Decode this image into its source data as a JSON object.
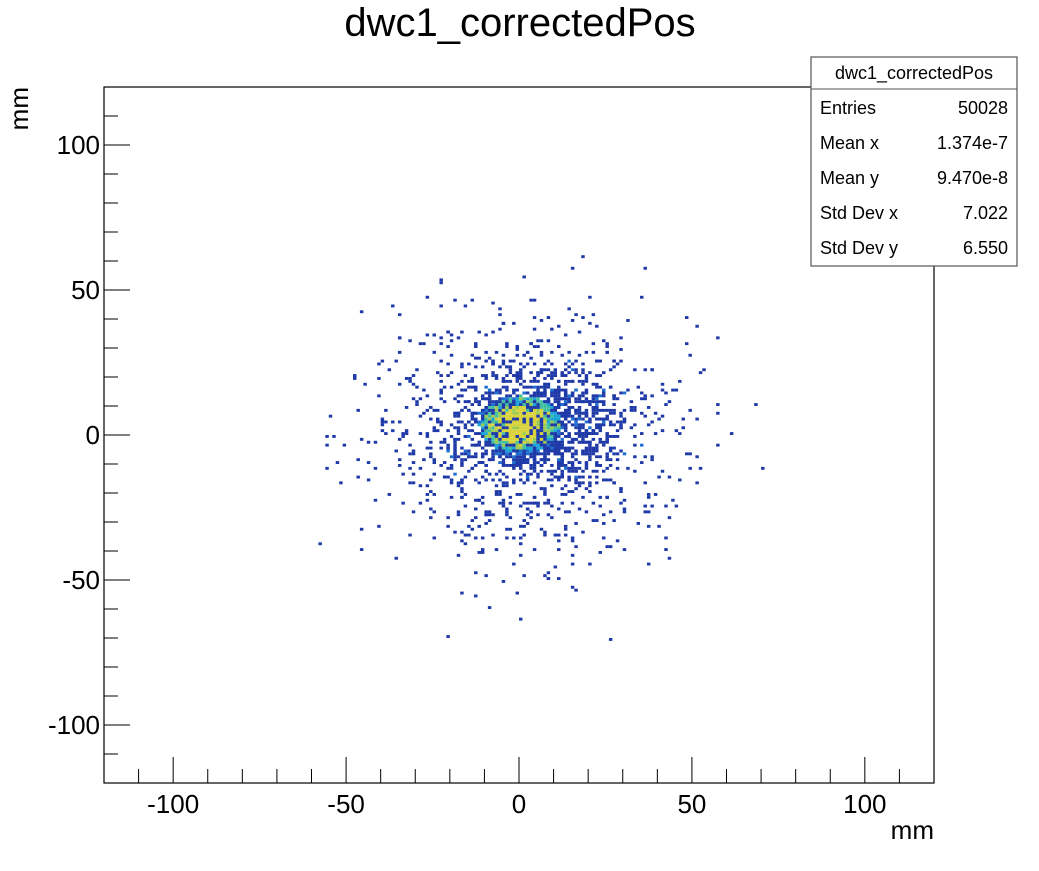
{
  "chart_data": {
    "type": "heatmap",
    "title": "dwc1_correctedPos",
    "xlabel": "mm",
    "ylabel": "mm",
    "xlim": [
      -120,
      120
    ],
    "ylim": [
      -120,
      120
    ],
    "x_ticks": [
      -100,
      -50,
      0,
      50,
      100
    ],
    "y_ticks": [
      100,
      50,
      0,
      -50,
      -100
    ],
    "x_tick_labels": [
      "-100",
      "-50",
      "0",
      "50",
      "100"
    ],
    "y_tick_labels": [
      "100",
      "50",
      "0",
      "-50",
      "-100"
    ],
    "grid": false,
    "colorscale": [
      "#1f3aa8",
      "#1d6fd0",
      "#1aa3d6",
      "#3fbf9f",
      "#9ccb4f",
      "#d9d23a"
    ],
    "core": {
      "center_x": 0,
      "center_y": 3,
      "radius_x": 12,
      "radius_y": 10
    },
    "halo": {
      "x_range": [
        -65,
        70
      ],
      "y_range": [
        -73,
        63
      ]
    },
    "stats_box": {
      "title": "dwc1_correctedPos",
      "position": "top-right",
      "rows": [
        {
          "label": "Entries",
          "value": "50028"
        },
        {
          "label": "Mean x",
          "value": "1.374e-7"
        },
        {
          "label": "Mean y",
          "value": "9.470e-8"
        },
        {
          "label": "Std Dev x",
          "value": "7.022"
        },
        {
          "label": "Std Dev y",
          "value": "6.550"
        }
      ]
    }
  }
}
